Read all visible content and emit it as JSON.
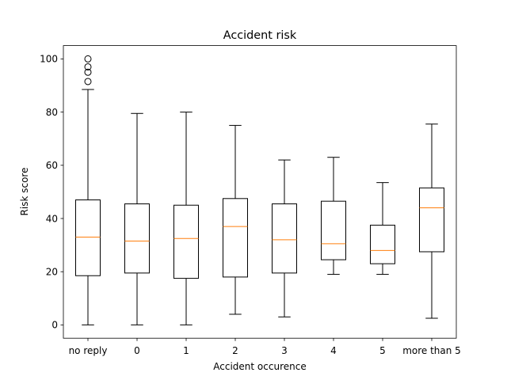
{
  "chart_data": {
    "type": "box",
    "title": "Accident risk",
    "xlabel": "Accident occurence",
    "ylabel": "Risk score",
    "ylim": [
      -5,
      105
    ],
    "yticks": [
      0,
      20,
      40,
      60,
      80,
      100
    ],
    "categories": [
      "no reply",
      "0",
      "1",
      "2",
      "3",
      "4",
      "5",
      "more than 5"
    ],
    "boxes": [
      {
        "label": "no reply",
        "whisker_low": 0,
        "q1": 18.5,
        "median": 33,
        "q3": 47,
        "whisker_high": 88.5,
        "outliers": [
          91.5,
          95,
          97,
          100
        ]
      },
      {
        "label": "0",
        "whisker_low": 0,
        "q1": 19.5,
        "median": 31.5,
        "q3": 45.5,
        "whisker_high": 79.5,
        "outliers": []
      },
      {
        "label": "1",
        "whisker_low": 0,
        "q1": 17.5,
        "median": 32.5,
        "q3": 45,
        "whisker_high": 80,
        "outliers": []
      },
      {
        "label": "2",
        "whisker_low": 4,
        "q1": 18,
        "median": 37,
        "q3": 47.5,
        "whisker_high": 75,
        "outliers": []
      },
      {
        "label": "3",
        "whisker_low": 3,
        "q1": 19.5,
        "median": 32,
        "q3": 45.5,
        "whisker_high": 62,
        "outliers": []
      },
      {
        "label": "4",
        "whisker_low": 19,
        "q1": 24.5,
        "median": 30.5,
        "q3": 46.5,
        "whisker_high": 63,
        "outliers": []
      },
      {
        "label": "5",
        "whisker_low": 19,
        "q1": 23,
        "median": 28,
        "q3": 37.5,
        "whisker_high": 53.5,
        "outliers": []
      },
      {
        "label": "more than 5",
        "whisker_low": 2.5,
        "q1": 27.5,
        "median": 44,
        "q3": 51.5,
        "whisker_high": 75.5,
        "outliers": []
      }
    ],
    "colors": {
      "box": "#000000",
      "median": "#ff7f0e",
      "outlier": "#000000"
    },
    "grid": false
  }
}
